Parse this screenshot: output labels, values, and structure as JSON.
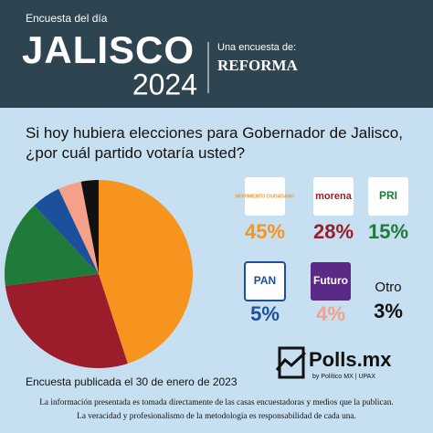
{
  "header": {
    "kicker": "Encuesta del día",
    "title": "JALISCO",
    "year": "2024",
    "byline": "Una encuesta de:",
    "brand": "REFORMA"
  },
  "chart_data": {
    "type": "pie",
    "title": "Si hoy hubiera elecciones para Gobernador de Jalisco, ¿por cuál partido votaría usted?",
    "categories": [
      "MOVIMIENTO CIUDADANO",
      "morena",
      "PRI",
      "PAN",
      "Futuro",
      "Otro"
    ],
    "values": [
      45,
      28,
      15,
      5,
      4,
      3
    ],
    "value_labels": [
      "45%",
      "28%",
      "15%",
      "5%",
      "4%",
      "3%"
    ],
    "colors": [
      "#f7941d",
      "#9b1c2a",
      "#1e7b3a",
      "#1c4f9c",
      "#f4a08a",
      "#111111"
    ]
  },
  "footer": {
    "date": "Encuesta publicada el 30 de enero de 2023",
    "disclaimer": [
      "La información presentada es tomada directamente de las casas encuestadoras y medios que la publican.",
      "La veracidad y profesionalismo de la metodología es responsabilidad de cada una."
    ],
    "logo": "Polls.mx",
    "logo_sub": "by Político MX | UPAX"
  }
}
